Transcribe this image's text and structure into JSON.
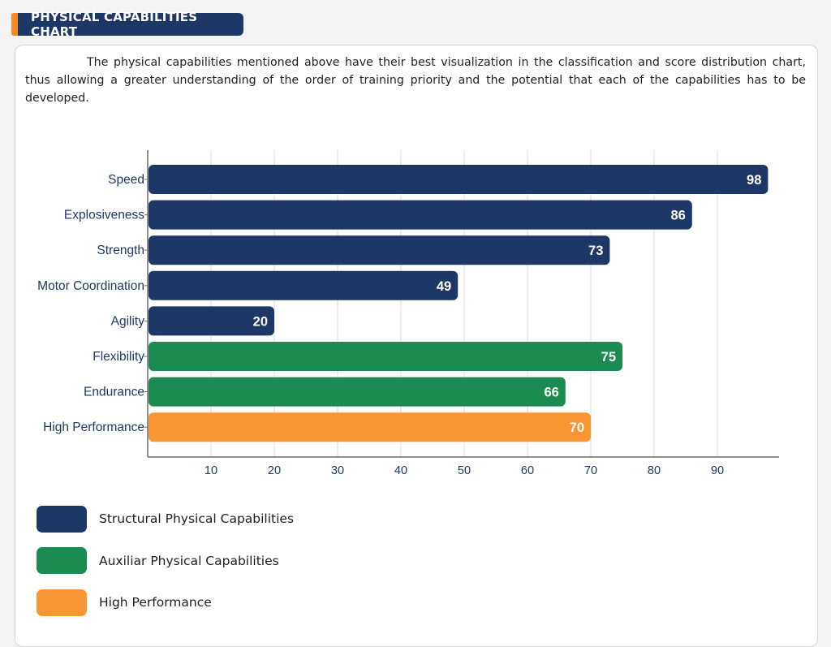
{
  "header": {
    "title": "PHYSICAL CAPABILITIES CHART"
  },
  "intro_text": "The physical capabilities mentioned above have their best visualization in the classification and score distribution chart, thus allowing a greater understanding of the order of training priority and the potential that each of the capabilities has to be developed.",
  "colors": {
    "structural": "#1d3866",
    "auxiliar": "#1c8b52",
    "high_performance": "#f99532",
    "accent": "#f58a24"
  },
  "chart_data": {
    "type": "bar",
    "orientation": "horizontal",
    "categories": [
      "Speed",
      "Explosiveness",
      "Strength",
      "Motor Coordination",
      "Agility",
      "Flexibility",
      "Endurance",
      "High Performance"
    ],
    "values": [
      98,
      86,
      73,
      49,
      20,
      75,
      66,
      70
    ],
    "groups": [
      "structural",
      "structural",
      "structural",
      "structural",
      "structural",
      "auxiliar",
      "auxiliar",
      "high_performance"
    ],
    "xticks": [
      10,
      20,
      30,
      40,
      50,
      60,
      70,
      80,
      90
    ],
    "xlim": [
      0,
      100
    ],
    "grid": true,
    "data_labels": true
  },
  "legend": [
    {
      "key": "structural",
      "label": "Structural Physical Capabilities"
    },
    {
      "key": "auxiliar",
      "label": "Auxiliar Physical Capabilities"
    },
    {
      "key": "high_performance",
      "label": "High Performance"
    }
  ]
}
